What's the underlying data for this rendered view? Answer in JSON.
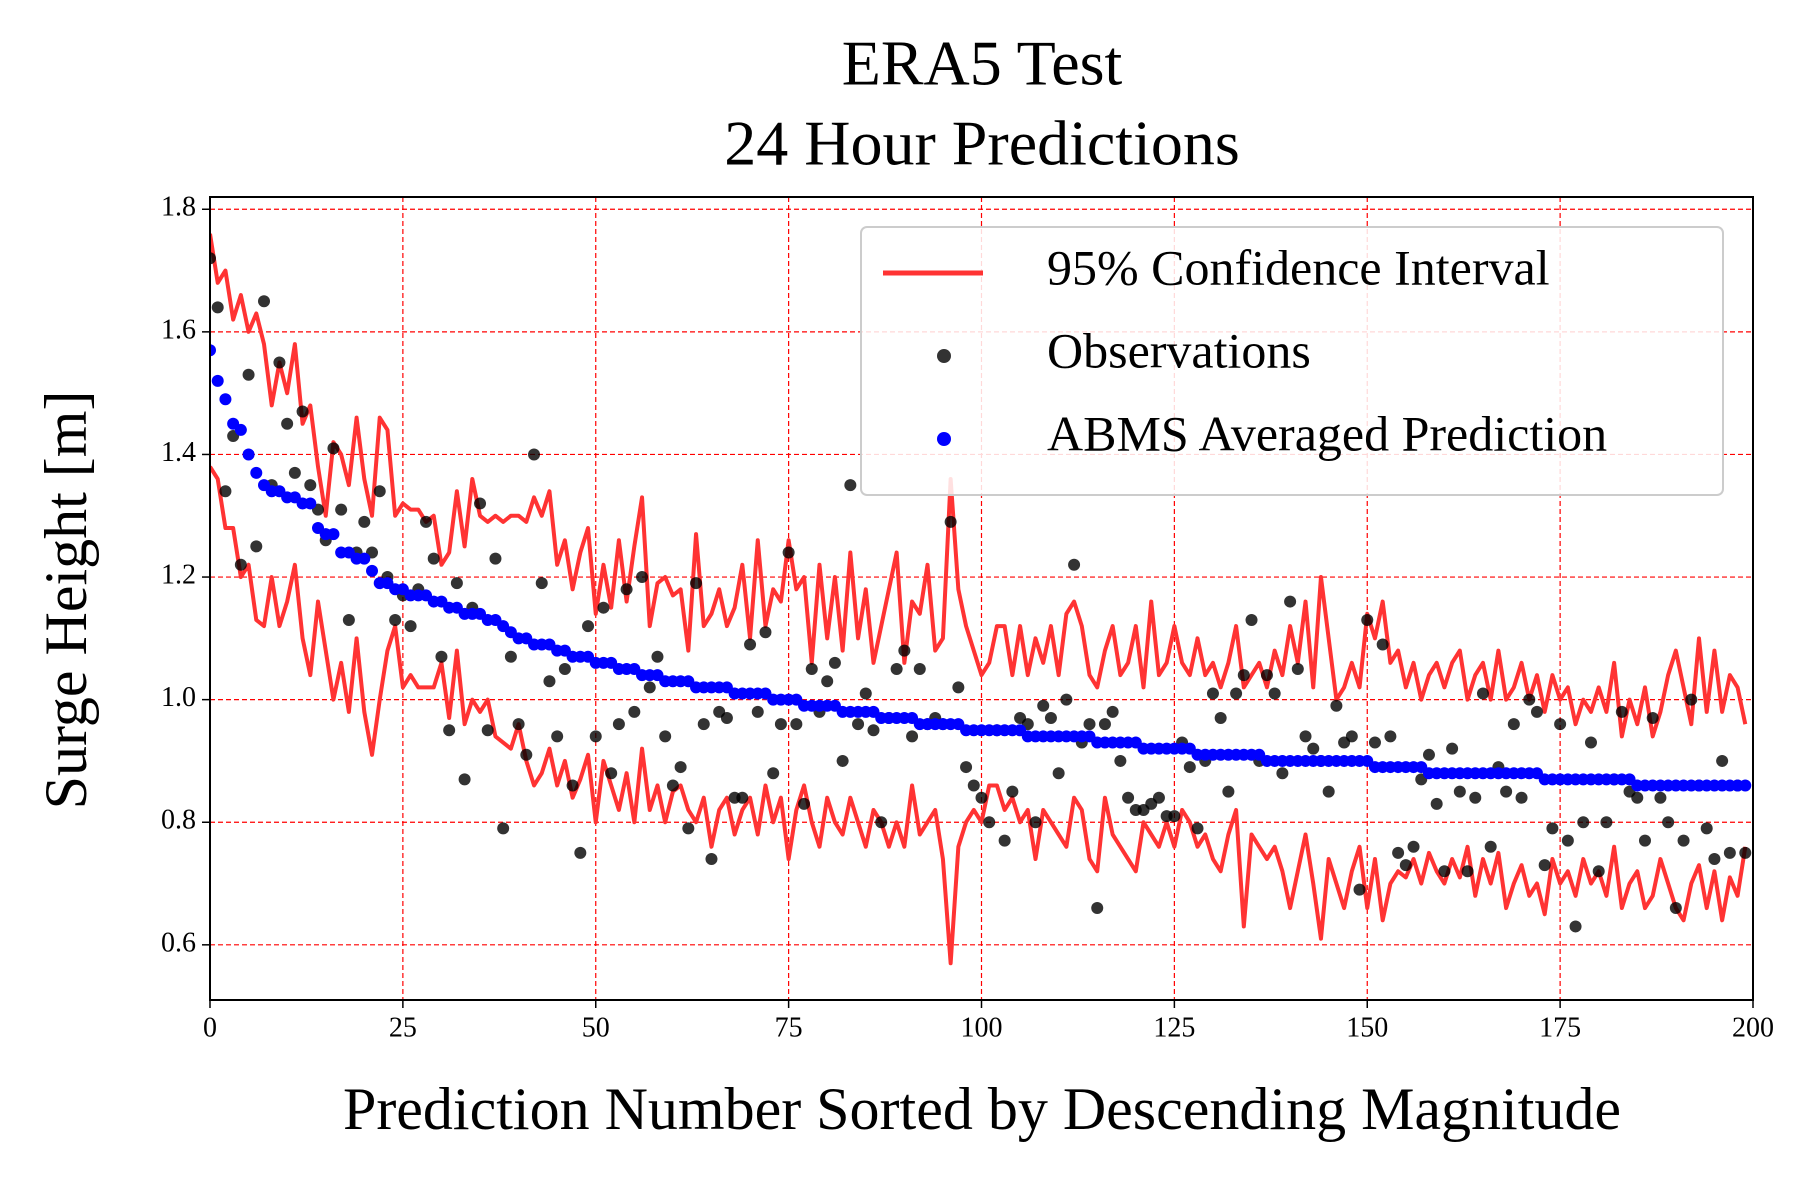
{
  "chart_data": {
    "type": "line",
    "title": [
      "ERA5 Test",
      "24 Hour Predictions"
    ],
    "x_label": "Prediction Number Sorted by Descending Magnitude",
    "y_label": "Surge Height [m]",
    "xlim": [
      0,
      200
    ],
    "ylim": [
      0.51,
      1.82
    ],
    "xticks": [
      0,
      25,
      50,
      75,
      100,
      125,
      150,
      175,
      200
    ],
    "yticks": [
      0.6,
      0.8,
      {
        "value": 1,
        "label": "1.0"
      },
      1.2,
      1.4,
      1.6,
      1.8
    ],
    "grid": true,
    "grid_color": "#ff0000",
    "legend": "upper right",
    "x": [
      0,
      1,
      2,
      3,
      4,
      5,
      6,
      7,
      8,
      9,
      10,
      11,
      12,
      13,
      14,
      15,
      16,
      17,
      18,
      19,
      20,
      21,
      22,
      23,
      24,
      25,
      26,
      27,
      28,
      29,
      30,
      31,
      32,
      33,
      34,
      35,
      36,
      37,
      38,
      39,
      40,
      41,
      42,
      43,
      44,
      45,
      46,
      47,
      48,
      49,
      50,
      51,
      52,
      53,
      54,
      55,
      56,
      57,
      58,
      59,
      60,
      61,
      62,
      63,
      64,
      65,
      66,
      67,
      68,
      69,
      70,
      71,
      72,
      73,
      74,
      75,
      76,
      77,
      78,
      79,
      80,
      81,
      82,
      83,
      84,
      85,
      86,
      87,
      88,
      89,
      90,
      91,
      92,
      93,
      94,
      95,
      96,
      97,
      98,
      99,
      100,
      101,
      102,
      103,
      104,
      105,
      106,
      107,
      108,
      109,
      110,
      111,
      112,
      113,
      114,
      115,
      116,
      117,
      118,
      119,
      120,
      121,
      122,
      123,
      124,
      125,
      126,
      127,
      128,
      129,
      130,
      131,
      132,
      133,
      134,
      135,
      136,
      137,
      138,
      139,
      140,
      141,
      142,
      143,
      144,
      145,
      146,
      147,
      148,
      149,
      150,
      151,
      152,
      153,
      154,
      155,
      156,
      157,
      158,
      159,
      160,
      161,
      162,
      163,
      164,
      165,
      166,
      167,
      168,
      169,
      170,
      171,
      172,
      173,
      174,
      175,
      176,
      177,
      178,
      179,
      180,
      181,
      182,
      183,
      184,
      185,
      186,
      187,
      188,
      189,
      190,
      191,
      192,
      193,
      194,
      195,
      196,
      197,
      198,
      199
    ],
    "series": [
      {
        "name": "95% Confidence Interval",
        "style": "band-lines",
        "color": "#ff3333",
        "upper": [
          1.76,
          1.68,
          1.7,
          1.62,
          1.66,
          1.6,
          1.63,
          1.58,
          1.48,
          1.55,
          1.5,
          1.58,
          1.45,
          1.48,
          1.38,
          1.3,
          1.42,
          1.4,
          1.35,
          1.46,
          1.36,
          1.3,
          1.46,
          1.44,
          1.3,
          1.32,
          1.31,
          1.31,
          1.29,
          1.3,
          1.22,
          1.24,
          1.34,
          1.25,
          1.36,
          1.3,
          1.29,
          1.3,
          1.29,
          1.3,
          1.3,
          1.29,
          1.33,
          1.3,
          1.34,
          1.22,
          1.26,
          1.18,
          1.24,
          1.28,
          1.14,
          1.22,
          1.15,
          1.26,
          1.16,
          1.25,
          1.33,
          1.12,
          1.19,
          1.2,
          1.17,
          1.18,
          1.08,
          1.27,
          1.12,
          1.14,
          1.18,
          1.12,
          1.15,
          1.22,
          1.1,
          1.26,
          1.12,
          1.18,
          1.16,
          1.26,
          1.18,
          1.2,
          1.06,
          1.22,
          1.1,
          1.2,
          1.08,
          1.24,
          1.1,
          1.18,
          1.06,
          1.12,
          1.18,
          1.24,
          1.06,
          1.16,
          1.14,
          1.22,
          1.08,
          1.1,
          1.36,
          1.18,
          1.12,
          1.08,
          1.04,
          1.06,
          1.12,
          1.12,
          1.04,
          1.12,
          1.04,
          1.1,
          1.06,
          1.12,
          1.04,
          1.14,
          1.16,
          1.12,
          1.04,
          1.02,
          1.08,
          1.12,
          1.04,
          1.06,
          1.12,
          1.02,
          1.16,
          1.04,
          1.06,
          1.12,
          1.06,
          1.04,
          1.1,
          1.04,
          1.06,
          1.02,
          1.06,
          1.12,
          1.02,
          1.04,
          1.06,
          1.02,
          1.08,
          1.04,
          1.12,
          1.06,
          1.16,
          1.02,
          1.2,
          1.1,
          1.0,
          1.02,
          1.06,
          1.02,
          1.14,
          1.1,
          1.16,
          1.06,
          1.08,
          1.02,
          1.06,
          1.0,
          1.04,
          1.06,
          1.02,
          1.06,
          1.08,
          1.0,
          1.04,
          1.06,
          1.0,
          1.08,
          1.0,
          1.02,
          1.06,
          1.0,
          1.04,
          0.98,
          1.04,
          1.0,
          1.02,
          0.96,
          1.0,
          0.98,
          1.02,
          0.98,
          1.06,
          0.94,
          1.0,
          0.96,
          1.02,
          0.94,
          0.98,
          1.04,
          1.08,
          1.02,
          0.96,
          1.1,
          0.98,
          1.08,
          0.98,
          1.04,
          1.02,
          0.96
        ],
        "lower": [
          1.38,
          1.36,
          1.28,
          1.28,
          1.2,
          1.22,
          1.13,
          1.12,
          1.2,
          1.12,
          1.16,
          1.22,
          1.1,
          1.04,
          1.16,
          1.08,
          1.0,
          1.06,
          0.98,
          1.1,
          0.98,
          0.91,
          1.0,
          1.08,
          1.12,
          1.02,
          1.04,
          1.02,
          1.02,
          1.02,
          1.06,
          0.97,
          1.08,
          0.96,
          1.0,
          0.98,
          1.0,
          0.94,
          0.93,
          0.92,
          0.96,
          0.9,
          0.86,
          0.88,
          0.92,
          0.86,
          0.9,
          0.84,
          0.87,
          0.91,
          0.8,
          0.9,
          0.86,
          0.82,
          0.88,
          0.8,
          0.92,
          0.82,
          0.86,
          0.8,
          0.85,
          0.86,
          0.82,
          0.8,
          0.84,
          0.76,
          0.82,
          0.84,
          0.78,
          0.82,
          0.84,
          0.78,
          0.86,
          0.8,
          0.84,
          0.74,
          0.82,
          0.86,
          0.8,
          0.76,
          0.84,
          0.8,
          0.78,
          0.84,
          0.8,
          0.76,
          0.82,
          0.8,
          0.76,
          0.8,
          0.76,
          0.86,
          0.78,
          0.8,
          0.82,
          0.74,
          0.57,
          0.76,
          0.8,
          0.82,
          0.8,
          0.86,
          0.86,
          0.82,
          0.84,
          0.8,
          0.82,
          0.74,
          0.82,
          0.8,
          0.78,
          0.76,
          0.84,
          0.82,
          0.74,
          0.72,
          0.84,
          0.78,
          0.76,
          0.74,
          0.72,
          0.8,
          0.78,
          0.76,
          0.8,
          0.76,
          0.82,
          0.8,
          0.76,
          0.78,
          0.74,
          0.72,
          0.78,
          0.82,
          0.63,
          0.78,
          0.76,
          0.74,
          0.76,
          0.72,
          0.66,
          0.72,
          0.78,
          0.7,
          0.61,
          0.74,
          0.7,
          0.66,
          0.72,
          0.76,
          0.66,
          0.74,
          0.64,
          0.7,
          0.72,
          0.71,
          0.74,
          0.7,
          0.75,
          0.72,
          0.7,
          0.74,
          0.71,
          0.76,
          0.68,
          0.74,
          0.7,
          0.75,
          0.66,
          0.7,
          0.73,
          0.68,
          0.7,
          0.65,
          0.74,
          0.7,
          0.72,
          0.68,
          0.74,
          0.7,
          0.72,
          0.68,
          0.76,
          0.66,
          0.7,
          0.72,
          0.66,
          0.68,
          0.74,
          0.7,
          0.66,
          0.64,
          0.7,
          0.73,
          0.66,
          0.72,
          0.64,
          0.71,
          0.68,
          0.76
        ]
      },
      {
        "name": "Observations",
        "style": "scatter",
        "color": "#000000",
        "alpha": 0.8,
        "values": [
          1.72,
          1.64,
          1.34,
          1.43,
          1.22,
          1.53,
          1.25,
          1.65,
          1.35,
          1.55,
          1.45,
          1.37,
          1.47,
          1.35,
          1.31,
          1.26,
          1.41,
          1.31,
          1.13,
          1.24,
          1.29,
          1.24,
          1.34,
          1.2,
          1.13,
          1.17,
          1.12,
          1.18,
          1.29,
          1.23,
          1.07,
          0.95,
          1.19,
          0.87,
          1.15,
          1.32,
          0.95,
          1.23,
          0.79,
          1.07,
          0.96,
          0.91,
          1.4,
          1.19,
          1.03,
          0.94,
          1.05,
          0.86,
          0.75,
          1.12,
          0.94,
          1.15,
          0.88,
          0.96,
          1.18,
          0.98,
          1.2,
          1.02,
          1.07,
          0.94,
          0.86,
          0.89,
          0.79,
          1.19,
          0.96,
          0.74,
          0.98,
          0.97,
          0.84,
          0.84,
          1.09,
          0.98,
          1.11,
          0.88,
          0.96,
          1.24,
          0.96,
          0.83,
          1.05,
          0.98,
          1.03,
          1.06,
          0.9,
          1.35,
          0.96,
          1.01,
          0.95,
          0.8,
          0.97,
          1.05,
          1.08,
          0.94,
          1.05,
          0.96,
          0.97,
          0.96,
          1.29,
          1.02,
          0.89,
          0.86,
          0.84,
          0.8,
          0.95,
          0.77,
          0.85,
          0.97,
          0.96,
          0.8,
          0.99,
          0.97,
          0.88,
          1.0,
          1.22,
          0.93,
          0.96,
          0.66,
          0.96,
          0.98,
          0.9,
          0.84,
          0.82,
          0.82,
          0.83,
          0.84,
          0.81,
          0.81,
          0.93,
          0.89,
          0.79,
          0.9,
          1.01,
          0.97,
          0.85,
          1.01,
          1.04,
          1.13,
          0.9,
          1.04,
          1.01,
          0.88,
          1.16,
          1.05,
          0.94,
          0.92,
          0.9,
          0.85,
          0.99,
          0.93,
          0.94,
          0.69,
          1.13,
          0.93,
          1.09,
          0.94,
          0.75,
          0.73,
          0.76,
          0.87,
          0.91,
          0.83,
          0.72,
          0.92,
          0.85,
          0.72,
          0.84,
          1.01,
          0.76,
          0.89,
          0.85,
          0.96,
          0.84,
          1.0,
          0.98,
          0.73,
          0.79,
          0.96,
          0.77,
          0.63,
          0.8,
          0.93,
          0.72,
          0.8,
          0.87,
          0.98,
          0.85,
          0.84,
          0.77,
          0.97,
          0.84,
          0.8,
          0.66,
          0.77,
          1.0,
          0.86,
          0.79,
          0.74,
          0.9,
          0.75,
          0.86,
          0.75
        ]
      },
      {
        "name": "ABMS Averaged Prediction",
        "style": "scatter",
        "color": "#0000ff",
        "alpha": 1,
        "values": [
          1.57,
          1.52,
          1.49,
          1.45,
          1.44,
          1.4,
          1.37,
          1.35,
          1.34,
          1.34,
          1.33,
          1.33,
          1.32,
          1.32,
          1.28,
          1.27,
          1.27,
          1.24,
          1.24,
          1.23,
          1.23,
          1.21,
          1.19,
          1.19,
          1.18,
          1.18,
          1.17,
          1.17,
          1.17,
          1.16,
          1.16,
          1.15,
          1.15,
          1.14,
          1.14,
          1.14,
          1.13,
          1.13,
          1.12,
          1.11,
          1.1,
          1.1,
          1.09,
          1.09,
          1.09,
          1.08,
          1.08,
          1.07,
          1.07,
          1.07,
          1.06,
          1.06,
          1.06,
          1.05,
          1.05,
          1.05,
          1.04,
          1.04,
          1.04,
          1.03,
          1.03,
          1.03,
          1.03,
          1.02,
          1.02,
          1.02,
          1.02,
          1.02,
          1.01,
          1.01,
          1.01,
          1.01,
          1.01,
          1.0,
          1.0,
          1.0,
          1.0,
          0.99,
          0.99,
          0.99,
          0.99,
          0.99,
          0.98,
          0.98,
          0.98,
          0.98,
          0.98,
          0.97,
          0.97,
          0.97,
          0.97,
          0.97,
          0.96,
          0.96,
          0.96,
          0.96,
          0.96,
          0.96,
          0.95,
          0.95,
          0.95,
          0.95,
          0.95,
          0.95,
          0.95,
          0.95,
          0.94,
          0.94,
          0.94,
          0.94,
          0.94,
          0.94,
          0.94,
          0.94,
          0.94,
          0.93,
          0.93,
          0.93,
          0.93,
          0.93,
          0.93,
          0.92,
          0.92,
          0.92,
          0.92,
          0.92,
          0.92,
          0.92,
          0.91,
          0.91,
          0.91,
          0.91,
          0.91,
          0.91,
          0.91,
          0.91,
          0.91,
          0.9,
          0.9,
          0.9,
          0.9,
          0.9,
          0.9,
          0.9,
          0.9,
          0.9,
          0.9,
          0.9,
          0.9,
          0.9,
          0.9,
          0.89,
          0.89,
          0.89,
          0.89,
          0.89,
          0.89,
          0.89,
          0.88,
          0.88,
          0.88,
          0.88,
          0.88,
          0.88,
          0.88,
          0.88,
          0.88,
          0.88,
          0.88,
          0.88,
          0.88,
          0.88,
          0.88,
          0.87,
          0.87,
          0.87,
          0.87,
          0.87,
          0.87,
          0.87,
          0.87,
          0.87,
          0.87,
          0.87,
          0.87,
          0.86,
          0.86,
          0.86,
          0.86,
          0.86,
          0.86,
          0.86,
          0.86,
          0.86,
          0.86,
          0.86,
          0.86,
          0.86,
          0.86,
          0.86
        ]
      }
    ]
  }
}
